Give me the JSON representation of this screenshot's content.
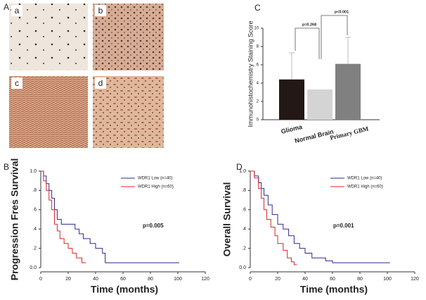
{
  "figure": {
    "panels": [
      "A",
      "B",
      "C",
      "D"
    ],
    "images": [
      "a",
      "b",
      "c",
      "d"
    ]
  },
  "chart_data": [
    {
      "type": "bar",
      "ylabel": "Immunohistochemistry Staining Score",
      "categories": [
        "Glioma",
        "Normal Brain",
        "Primary GBM"
      ],
      "values": [
        4.4,
        3.3,
        6.1
      ],
      "errors": [
        2.9,
        null,
        2.9
      ],
      "colors": [
        "#231815",
        "#d4d4d4",
        "#808080"
      ],
      "ylim": [
        0,
        10
      ],
      "yticks": [
        0,
        2,
        4,
        6,
        8,
        10
      ],
      "annotations": [
        "p=0.268",
        "p<0.001"
      ]
    },
    {
      "type": "line",
      "xlabel": "Time (months)",
      "ylabel": "Progression Fres Survival",
      "xlim": [
        0,
        120
      ],
      "xticks": [
        0,
        20,
        40,
        60,
        80,
        100,
        120
      ],
      "ylim": [
        0,
        1
      ],
      "yticks": [
        {
          "value": 0,
          "label": "0.0"
        },
        {
          "value": 0.2,
          "label": ".2"
        },
        {
          "value": 0.4,
          "label": ".4"
        },
        {
          "value": 0.6,
          "label": ".6"
        },
        {
          "value": 0.8,
          "label": ".8"
        },
        {
          "value": 1,
          "label": "1.0"
        }
      ],
      "legend": "upper right",
      "annotations": [
        "p=0.005"
      ],
      "series": [
        {
          "name": "WDR1 Low (n=40)",
          "color": "#2b2b8c",
          "x": [
            0,
            2,
            2,
            4,
            4,
            6,
            6,
            8,
            8,
            10,
            10,
            12,
            12,
            15,
            15,
            25,
            25,
            28,
            28,
            31,
            31,
            36,
            36,
            40,
            40,
            45,
            45,
            47,
            47,
            101
          ],
          "values": [
            1,
            1,
            0.95,
            0.95,
            0.87,
            0.87,
            0.8,
            0.8,
            0.72,
            0.72,
            0.6,
            0.6,
            0.5,
            0.5,
            0.45,
            0.45,
            0.4,
            0.4,
            0.35,
            0.35,
            0.3,
            0.3,
            0.25,
            0.25,
            0.2,
            0.2,
            0.15,
            0.15,
            0.05,
            0.05
          ]
        },
        {
          "name": "WDR1 High (n=60)",
          "color": "#d9262b",
          "x": [
            0,
            2,
            2,
            4,
            4,
            6,
            6,
            8,
            8,
            10,
            10,
            12,
            12,
            14,
            14,
            17,
            17,
            20,
            20,
            23,
            23,
            26,
            26,
            30,
            30,
            33
          ],
          "values": [
            1,
            1,
            0.9,
            0.9,
            0.8,
            0.8,
            0.7,
            0.7,
            0.6,
            0.6,
            0.45,
            0.45,
            0.38,
            0.38,
            0.3,
            0.3,
            0.25,
            0.25,
            0.2,
            0.2,
            0.15,
            0.15,
            0.1,
            0.1,
            0.05,
            0.05
          ]
        }
      ]
    },
    {
      "type": "line",
      "xlabel": "Time (months)",
      "ylabel": "Overall Survival",
      "xlim": [
        0,
        120
      ],
      "xticks": [
        0,
        20,
        40,
        60,
        80,
        100,
        120
      ],
      "ylim": [
        0,
        1
      ],
      "yticks": [
        {
          "value": 0,
          "label": "0.0"
        },
        {
          "value": 0.2,
          "label": ".2"
        },
        {
          "value": 0.4,
          "label": ".4"
        },
        {
          "value": 0.6,
          "label": ".6"
        },
        {
          "value": 0.8,
          "label": ".8"
        },
        {
          "value": 1,
          "label": "1.0"
        }
      ],
      "legend": "upper right",
      "annotations": [
        "p=0.001"
      ],
      "series": [
        {
          "name": "WDR1 Low (n=40)",
          "color": "#2b2b8c",
          "x": [
            0,
            3,
            3,
            6,
            6,
            8,
            8,
            10,
            10,
            13,
            13,
            16,
            16,
            20,
            20,
            24,
            24,
            28,
            28,
            32,
            32,
            36,
            36,
            40,
            40,
            45,
            45,
            55,
            55,
            60,
            60,
            102
          ],
          "values": [
            1,
            1,
            0.95,
            0.95,
            0.88,
            0.88,
            0.82,
            0.82,
            0.75,
            0.75,
            0.65,
            0.65,
            0.55,
            0.55,
            0.45,
            0.45,
            0.4,
            0.4,
            0.33,
            0.33,
            0.25,
            0.25,
            0.2,
            0.2,
            0.15,
            0.15,
            0.1,
            0.1,
            0.07,
            0.07,
            0.05,
            0.05
          ]
        },
        {
          "name": "WDR1 High (n=60)",
          "color": "#d9262b",
          "x": [
            0,
            3,
            3,
            6,
            6,
            8,
            8,
            10,
            10,
            12,
            12,
            15,
            15,
            18,
            18,
            20,
            20,
            24,
            24,
            27,
            27,
            30,
            30,
            32,
            32,
            34
          ],
          "values": [
            1,
            1,
            0.93,
            0.93,
            0.82,
            0.82,
            0.72,
            0.72,
            0.6,
            0.6,
            0.5,
            0.5,
            0.42,
            0.42,
            0.33,
            0.33,
            0.25,
            0.25,
            0.18,
            0.18,
            0.1,
            0.1,
            0.06,
            0.06,
            0.03,
            0.03
          ]
        }
      ]
    }
  ]
}
